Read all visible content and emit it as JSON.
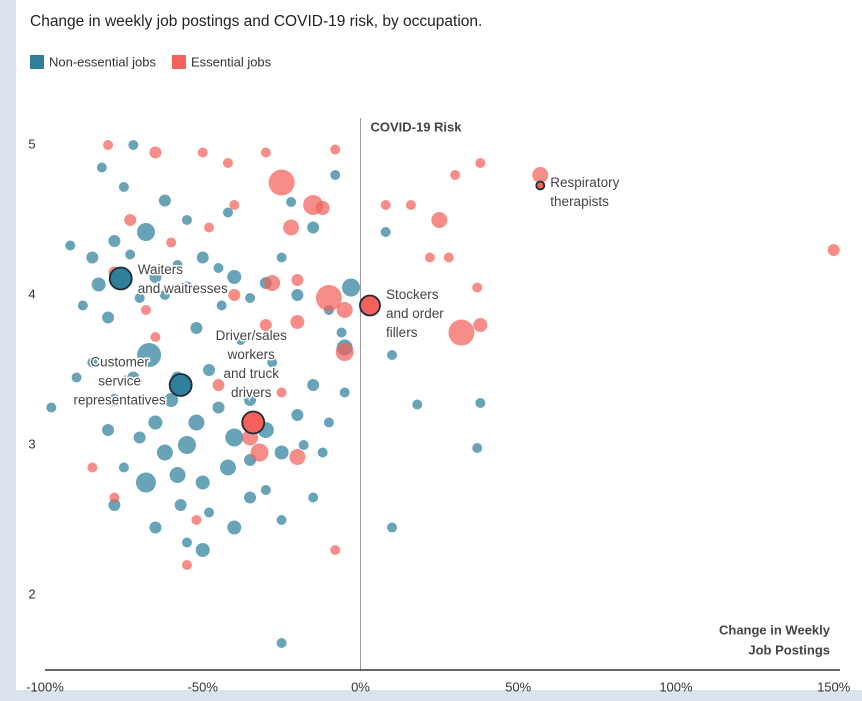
{
  "chart_data": {
    "type": "scatter",
    "title": "Change in weekly job postings and COVID-19 risk, by occupation.",
    "y_label": "COVID-19 Risk",
    "x_label": [
      "Change in Weekly",
      "Job Postings"
    ],
    "xlim": [
      -100,
      152
    ],
    "ylim": [
      1.5,
      5.18
    ],
    "xticks": [
      {
        "value": -100,
        "label": "-100%"
      },
      {
        "value": -50,
        "label": "-50%"
      },
      {
        "value": 0,
        "label": "0%"
      },
      {
        "value": 50,
        "label": "50%"
      },
      {
        "value": 100,
        "label": "100%"
      },
      {
        "value": 150,
        "label": "150%"
      }
    ],
    "yticks": [
      2,
      3,
      4,
      5
    ],
    "series": [
      {
        "name": "Non-essential jobs",
        "color": "#2e7f9c",
        "x": [
          -92,
          -85,
          -83,
          -78,
          -73,
          -88,
          -80,
          -70,
          -65,
          -62,
          -58,
          -55,
          -50,
          -45,
          -40,
          -35,
          -30,
          -25,
          -20,
          -15,
          -10,
          -5,
          -3,
          -68,
          -75,
          -82,
          -72,
          -62,
          -55,
          -42,
          -22,
          -8,
          8,
          -67,
          -72,
          -85,
          -78,
          -90,
          -60,
          -52,
          -45,
          -40,
          -35,
          -30,
          -25,
          -20,
          -15,
          -28,
          -48,
          -55,
          -62,
          -65,
          -70,
          -75,
          -80,
          -58,
          -50,
          -42,
          -35,
          -30,
          -68,
          -57,
          -78,
          -65,
          -48,
          -40,
          -50,
          -55,
          -35,
          -25,
          -15,
          -18,
          -10,
          -12,
          -5,
          -98,
          -25,
          10,
          18,
          38,
          37,
          10,
          -6,
          -44,
          -52,
          -38,
          -58
        ],
        "values": [
          4.33,
          4.25,
          4.07,
          4.36,
          4.27,
          3.93,
          3.85,
          3.98,
          4.12,
          4.0,
          4.2,
          4.05,
          4.25,
          4.18,
          4.12,
          3.98,
          4.08,
          4.25,
          4.0,
          4.45,
          3.9,
          3.65,
          4.05,
          4.42,
          4.72,
          4.85,
          5.0,
          4.63,
          4.5,
          4.55,
          4.62,
          4.8,
          4.42,
          3.6,
          3.45,
          3.55,
          3.3,
          3.45,
          3.3,
          3.15,
          3.25,
          3.05,
          3.3,
          3.1,
          2.95,
          3.2,
          3.4,
          3.55,
          3.5,
          3.0,
          2.95,
          3.15,
          3.05,
          2.85,
          3.1,
          2.8,
          2.75,
          2.85,
          2.9,
          2.7,
          2.75,
          2.6,
          2.6,
          2.45,
          2.55,
          2.45,
          2.3,
          2.35,
          2.65,
          2.5,
          2.65,
          3.0,
          3.15,
          2.95,
          3.35,
          3.25,
          1.68,
          2.45,
          3.27,
          3.28,
          2.98,
          3.6,
          3.75,
          3.93,
          3.78,
          3.7,
          3.45
        ],
        "sizes": [
          5,
          6,
          7,
          6,
          5,
          5,
          6,
          5,
          6,
          5,
          5,
          6,
          6,
          5,
          7,
          5,
          6,
          5,
          6,
          6,
          5,
          8,
          9,
          9,
          5,
          5,
          5,
          6,
          5,
          5,
          5,
          5,
          5,
          12,
          6,
          5,
          6,
          5,
          7,
          8,
          6,
          9,
          6,
          8,
          7,
          6,
          6,
          5,
          6,
          9,
          8,
          7,
          6,
          5,
          6,
          8,
          7,
          8,
          6,
          5,
          10,
          6,
          6,
          6,
          5,
          7,
          7,
          5,
          6,
          5,
          5,
          5,
          5,
          5,
          5,
          5,
          5,
          5,
          5,
          5,
          5,
          5,
          5,
          5,
          6,
          5,
          6
        ]
      },
      {
        "name": "Essential jobs",
        "color": "#f3615a",
        "x": [
          -73,
          -78,
          -60,
          -48,
          -40,
          -30,
          -25,
          -22,
          -15,
          -12,
          -28,
          -20,
          -10,
          -5,
          -5,
          -30,
          -40,
          -20,
          -45,
          -25,
          -35,
          -32,
          -20,
          -85,
          -78,
          -52,
          -55,
          -8,
          -50,
          -65,
          -42,
          -8,
          8,
          16,
          25,
          22,
          28,
          32,
          38,
          37,
          30,
          38,
          57,
          150,
          -80,
          -65,
          -68
        ],
        "values": [
          4.5,
          4.15,
          4.35,
          4.45,
          4.6,
          4.95,
          4.75,
          4.45,
          4.6,
          4.58,
          4.08,
          4.1,
          3.98,
          3.9,
          3.62,
          3.8,
          4.0,
          3.82,
          3.4,
          3.35,
          3.05,
          2.95,
          2.92,
          2.85,
          2.65,
          2.5,
          2.2,
          2.3,
          4.95,
          4.95,
          4.88,
          4.97,
          4.6,
          4.6,
          4.5,
          4.25,
          4.25,
          3.75,
          3.8,
          4.05,
          4.8,
          4.88,
          4.8,
          4.3,
          5.0,
          3.72,
          3.9
        ],
        "sizes": [
          6,
          6,
          5,
          5,
          5,
          5,
          13,
          8,
          10,
          7,
          8,
          6,
          13,
          8,
          9,
          6,
          6,
          7,
          6,
          5,
          8,
          9,
          8,
          5,
          5,
          5,
          5,
          5,
          5,
          6,
          5,
          5,
          5,
          5,
          8,
          5,
          5,
          13,
          7,
          5,
          5,
          5,
          8,
          6,
          5,
          5,
          5
        ]
      }
    ],
    "highlighted": [
      {
        "label": [
          "Waiters",
          "and waitresses"
        ],
        "series": 0,
        "x": -76,
        "y": 4.11,
        "size": 11
      },
      {
        "label": [
          "Customer",
          "service",
          "representatives"
        ],
        "series": 0,
        "x": -57,
        "y": 3.4,
        "size": 11
      },
      {
        "label": [
          "Driver/sales",
          "workers",
          "and truck",
          "drivers"
        ],
        "series": 1,
        "x": -34,
        "y": 3.15,
        "size": 11
      },
      {
        "label": [
          "Stockers",
          "and order",
          "fillers"
        ],
        "series": 1,
        "x": 3,
        "y": 3.93,
        "size": 10
      },
      {
        "label": [
          "Respiratory",
          "therapists"
        ],
        "series": 1,
        "x": 57,
        "y": 4.73,
        "size": 4
      }
    ]
  }
}
